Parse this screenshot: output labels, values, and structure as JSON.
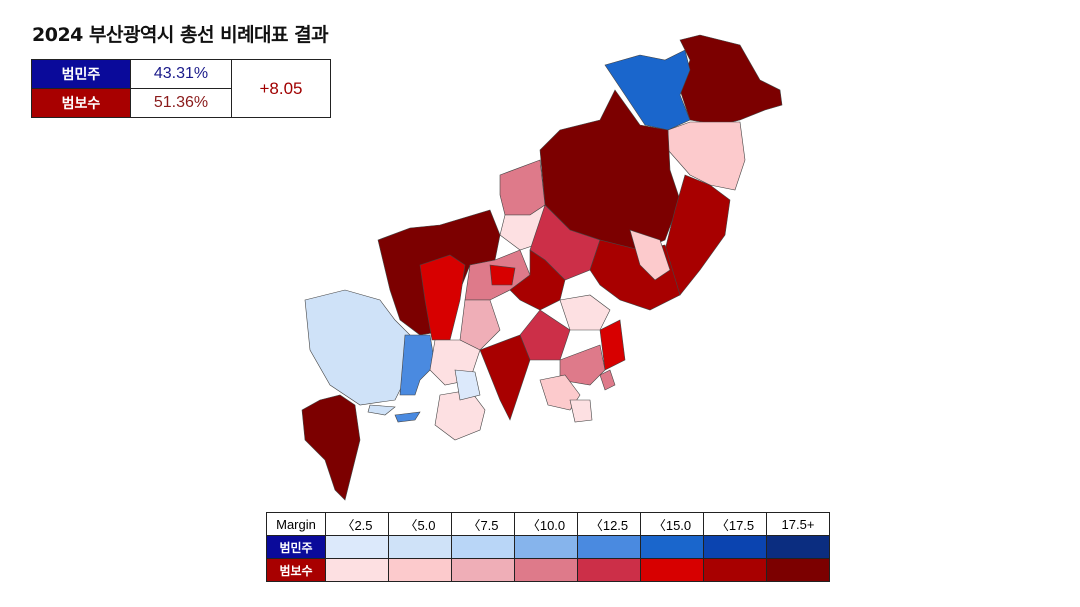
{
  "title": "2024 부산광역시 총선 비례대표 결과",
  "summary": {
    "dem": {
      "label": "범민주",
      "value": "43.31%",
      "color": "#0a0a9a",
      "text_color": "#1a1a8a"
    },
    "con": {
      "label": "범보수",
      "value": "51.36%",
      "color": "#a80000",
      "text_color": "#8a1a1a"
    },
    "margin": "+8.05"
  },
  "legend": {
    "header": "Margin",
    "bins": [
      "〈2.5",
      "〈5.0",
      "〈7.5",
      "〈10.0",
      "〈12.5",
      "〈15.0",
      "〈17.5",
      "17.5+"
    ],
    "dem_label": "범민주",
    "con_label": "범보수",
    "dem_colors": [
      "#dce9fb",
      "#cfe2f8",
      "#b9d6f7",
      "#86b4ec",
      "#4a8ae0",
      "#1a66cc",
      "#0b44b0",
      "#0b2d80"
    ],
    "con_colors": [
      "#fde0e2",
      "#fccacc",
      "#efaeb7",
      "#de7a8a",
      "#cc2f48",
      "#d70000",
      "#a80000",
      "#7c0000"
    ]
  }
}
